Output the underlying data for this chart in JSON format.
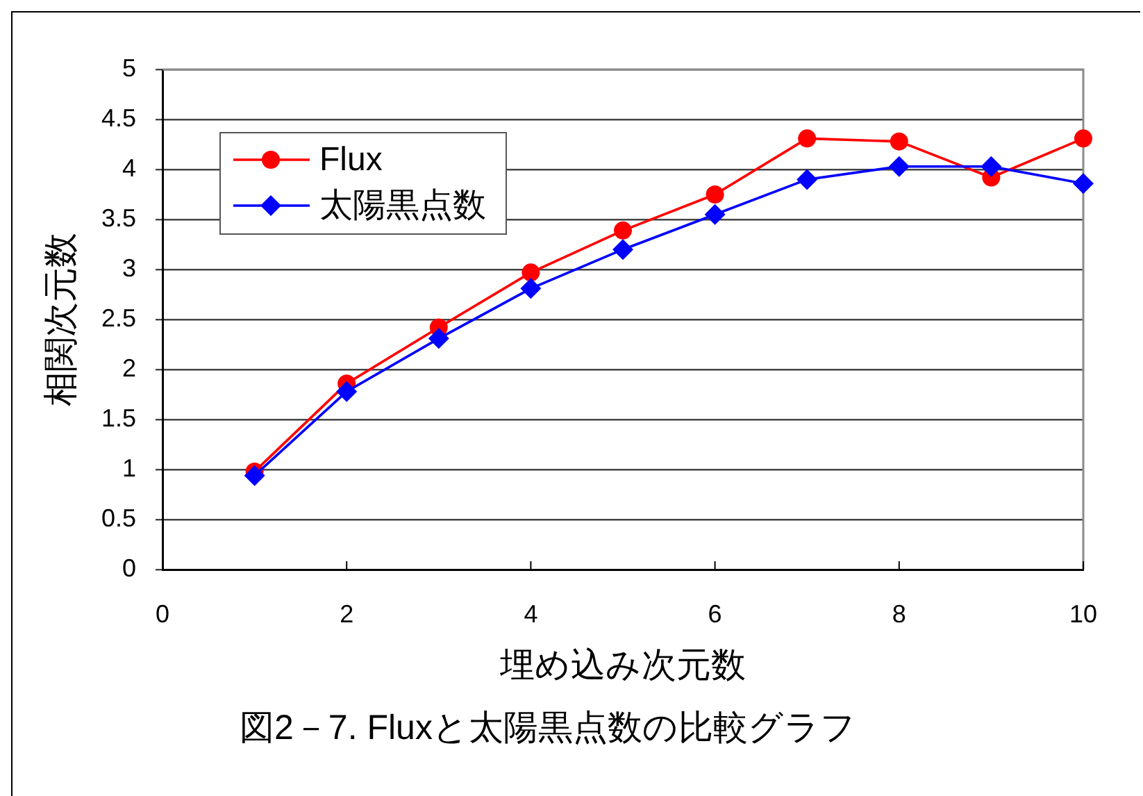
{
  "chart_data": {
    "type": "line",
    "title": "図2－7. Fluxと太陽黒点数の比較グラフ",
    "xlabel": "埋め込み次元数",
    "ylabel": "相関次元数",
    "x": [
      1,
      2,
      3,
      4,
      5,
      6,
      7,
      8,
      9,
      10
    ],
    "series": [
      {
        "name": "Flux",
        "color": "#ff0000",
        "marker": "circle",
        "values": [
          0.98,
          1.86,
          2.42,
          2.97,
          3.39,
          3.75,
          4.31,
          4.28,
          3.92,
          4.31
        ]
      },
      {
        "name": "太陽黒点数",
        "color": "#0000ff",
        "marker": "diamond",
        "values": [
          0.94,
          1.78,
          2.31,
          2.81,
          3.2,
          3.55,
          3.9,
          4.03,
          4.03,
          3.86
        ]
      }
    ],
    "xlim": [
      0,
      10
    ],
    "xticks": [
      0,
      2,
      4,
      6,
      8,
      10
    ],
    "ylim": [
      0,
      5
    ],
    "yticks": [
      0,
      0.5,
      1,
      1.5,
      2,
      2.5,
      3,
      3.5,
      4,
      4.5,
      5
    ],
    "grid": "y",
    "legend": "top left"
  }
}
